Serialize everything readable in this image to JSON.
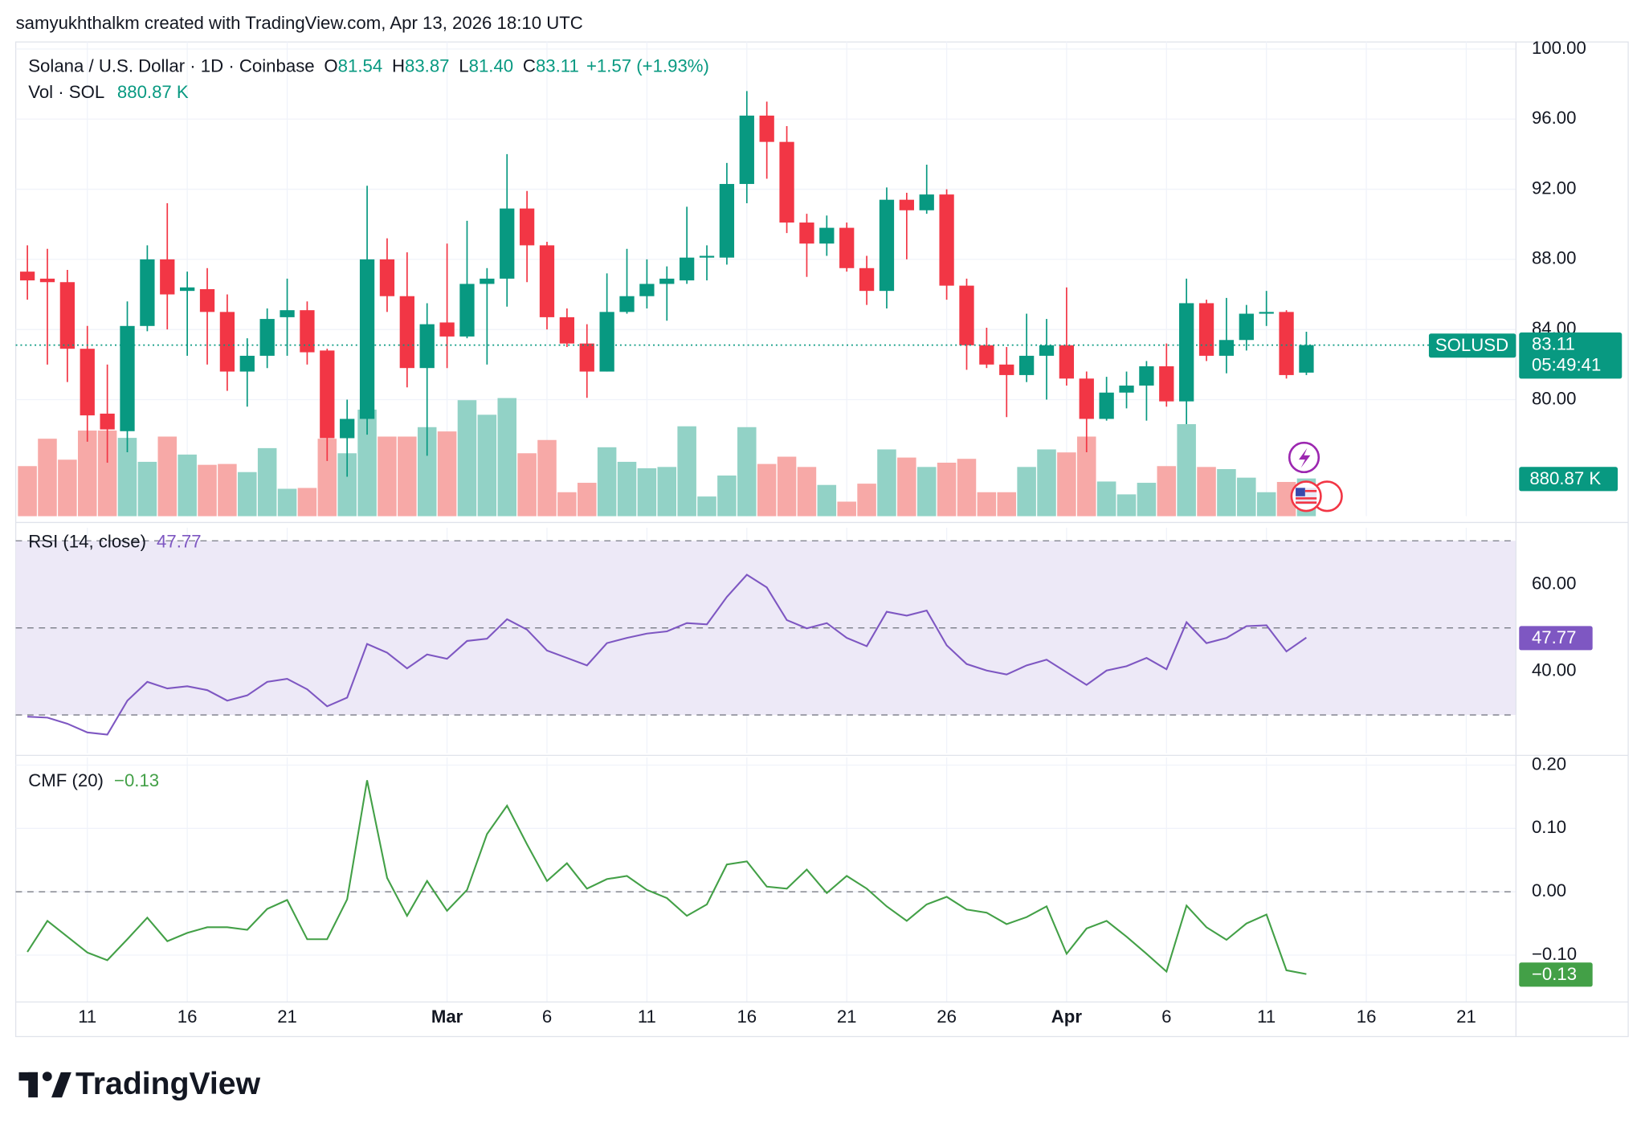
{
  "header": {
    "title": "samyukhthalkm created with TradingView.com, Apr 13, 2026 18:10 UTC"
  },
  "footer": {
    "logo": "TradingView"
  },
  "chart_data": [
    {
      "type": "candlestick",
      "title": "Solana / U.S. Dollar · 1D · Coinbase",
      "legend": {
        "o": "O",
        "o_value": "81.54",
        "h": "H",
        "h_value": "83.87",
        "l": "L",
        "l_value": "81.40",
        "c": "C",
        "c_value": "83.11",
        "change": "+1.57 (+1.93%)"
      },
      "volume_title": "Vol · SOL",
      "volume_legend": "880.87 K",
      "volume_tag": "880.87 K",
      "symbol_tag": "SOLUSD",
      "countdown": "05:49:41",
      "x": [
        "2026-02-08",
        "2026-02-09",
        "2026-02-10",
        "2026-02-11",
        "2026-02-12",
        "2026-02-13",
        "2026-02-14",
        "2026-02-15",
        "2026-02-16",
        "2026-02-17",
        "2026-02-18",
        "2026-02-19",
        "2026-02-20",
        "2026-02-21",
        "2026-02-22",
        "2026-02-23",
        "2026-02-24",
        "2026-02-25",
        "2026-02-26",
        "2026-02-27",
        "2026-02-28",
        "2026-03-01",
        "2026-03-02",
        "2026-03-03",
        "2026-03-04",
        "2026-03-05",
        "2026-03-06",
        "2026-03-07",
        "2026-03-08",
        "2026-03-09",
        "2026-03-10",
        "2026-03-11",
        "2026-03-12",
        "2026-03-13",
        "2026-03-14",
        "2026-03-15",
        "2026-03-16",
        "2026-03-17",
        "2026-03-18",
        "2026-03-19",
        "2026-03-20",
        "2026-03-21",
        "2026-03-22",
        "2026-03-23",
        "2026-03-24",
        "2026-03-25",
        "2026-03-26",
        "2026-03-27",
        "2026-03-28",
        "2026-03-29",
        "2026-03-30",
        "2026-03-31",
        "2026-04-01",
        "2026-04-02",
        "2026-04-03",
        "2026-04-04",
        "2026-04-05",
        "2026-04-06",
        "2026-04-07",
        "2026-04-08",
        "2026-04-09",
        "2026-04-10",
        "2026-04-11",
        "2026-04-12",
        "2026-04-13"
      ],
      "open": [
        87.3,
        86.9,
        86.7,
        82.9,
        79.2,
        78.2,
        84.2,
        88.0,
        86.2,
        86.3,
        85.0,
        81.6,
        82.5,
        84.7,
        85.1,
        82.8,
        77.8,
        78.9,
        88.0,
        85.9,
        81.8,
        84.4,
        83.6,
        86.6,
        86.9,
        90.9,
        88.8,
        84.7,
        83.2,
        81.6,
        85.0,
        85.9,
        86.6,
        86.8,
        88.1,
        88.1,
        92.3,
        96.2,
        94.7,
        90.1,
        88.9,
        89.8,
        87.5,
        86.2,
        91.4,
        90.8,
        91.7,
        86.5,
        83.1,
        82.0,
        81.4,
        82.5,
        83.1,
        81.2,
        78.9,
        80.4,
        80.8,
        81.9,
        79.9,
        85.5,
        82.5,
        83.4,
        84.9,
        85.0,
        81.54
      ],
      "high": [
        88.8,
        88.6,
        87.4,
        84.2,
        82.0,
        85.6,
        88.8,
        91.2,
        87.3,
        87.5,
        86.0,
        83.5,
        85.2,
        86.9,
        85.6,
        82.9,
        80.0,
        92.2,
        89.2,
        88.4,
        85.5,
        88.9,
        90.2,
        87.5,
        94.0,
        91.9,
        89.0,
        85.2,
        84.3,
        87.2,
        88.6,
        88.0,
        87.6,
        91.0,
        88.8,
        93.5,
        97.6,
        97.0,
        95.6,
        90.6,
        90.5,
        90.1,
        88.2,
        92.1,
        91.8,
        93.4,
        92.0,
        86.9,
        84.1,
        83.0,
        84.9,
        84.6,
        86.4,
        81.6,
        81.3,
        81.6,
        82.2,
        83.2,
        86.9,
        85.7,
        85.8,
        85.4,
        86.2,
        85.1,
        83.87
      ],
      "low": [
        85.7,
        82.0,
        81.0,
        77.6,
        76.4,
        77.0,
        83.9,
        84.0,
        82.5,
        82.0,
        80.5,
        79.6,
        81.8,
        82.5,
        82.0,
        76.5,
        75.6,
        78.0,
        85.0,
        80.7,
        76.8,
        81.8,
        83.5,
        82.0,
        85.3,
        86.7,
        84.0,
        83.0,
        80.1,
        81.6,
        84.9,
        85.2,
        84.5,
        86.6,
        86.8,
        87.7,
        91.2,
        92.6,
        89.5,
        87.0,
        88.2,
        87.3,
        85.4,
        85.2,
        88.0,
        90.6,
        85.7,
        81.7,
        81.8,
        79.0,
        81.0,
        80.0,
        80.8,
        77.0,
        78.8,
        79.5,
        78.8,
        79.6,
        78.6,
        82.2,
        81.5,
        82.8,
        84.2,
        81.2,
        81.4
      ],
      "close": [
        86.8,
        86.7,
        82.9,
        79.1,
        78.3,
        84.2,
        88.0,
        86.0,
        86.4,
        85.0,
        81.6,
        82.5,
        84.6,
        85.1,
        82.7,
        77.8,
        78.9,
        88.0,
        85.9,
        81.8,
        84.3,
        83.6,
        86.6,
        86.9,
        90.9,
        88.8,
        84.7,
        83.2,
        81.6,
        85.0,
        85.9,
        86.6,
        86.9,
        88.1,
        88.2,
        92.3,
        96.2,
        94.7,
        90.1,
        88.9,
        89.8,
        87.5,
        86.2,
        91.4,
        90.8,
        91.7,
        86.5,
        83.1,
        82.0,
        81.4,
        82.5,
        83.1,
        81.2,
        78.9,
        80.4,
        80.8,
        81.9,
        79.9,
        85.5,
        82.5,
        83.4,
        84.9,
        85.0,
        81.4,
        83.11
      ],
      "volume": [
        1170,
        1810,
        1320,
        2000,
        2000,
        1830,
        1270,
        1860,
        1440,
        1200,
        1220,
        1030,
        1590,
        640,
        660,
        1810,
        1470,
        2490,
        1860,
        1860,
        2080,
        1980,
        2710,
        2370,
        2760,
        1470,
        1780,
        560,
        780,
        1610,
        1270,
        1120,
        1150,
        2100,
        460,
        950,
        2080,
        1220,
        1390,
        1150,
        730,
        340,
        760,
        1560,
        1370,
        1150,
        1250,
        1340,
        560,
        560,
        1150,
        1560,
        1490,
        1860,
        810,
        510,
        780,
        1170,
        2150,
        1150,
        1100,
        900,
        560,
        800,
        880.87
      ],
      "up_color": "#089981",
      "down_color": "#f23645",
      "volume_up_color": "#92d2c6",
      "volume_down_color": "#f7a9a7",
      "xlim": [
        "2026-02-07T10:00:00Z",
        "2026-04-23T11:40:00Z"
      ],
      "xticks": [
        {
          "value": "2026-02-11",
          "label": "11"
        },
        {
          "value": "2026-02-16",
          "label": "16"
        },
        {
          "value": "2026-02-21",
          "label": "21"
        },
        {
          "value": "2026-03-01",
          "label": "Mar"
        },
        {
          "value": "2026-03-06",
          "label": "6"
        },
        {
          "value": "2026-03-11",
          "label": "11"
        },
        {
          "value": "2026-03-16",
          "label": "16"
        },
        {
          "value": "2026-03-21",
          "label": "21"
        },
        {
          "value": "2026-03-26",
          "label": "26"
        },
        {
          "value": "2026-04-01",
          "label": "Apr"
        },
        {
          "value": "2026-04-06",
          "label": "6"
        },
        {
          "value": "2026-04-11",
          "label": "11"
        },
        {
          "value": "2026-04-16",
          "label": "16"
        },
        {
          "value": "2026-04-21",
          "label": "21"
        }
      ],
      "ylim": [
        73.35,
        100.4
      ],
      "yticks": [
        {
          "value": 100,
          "label": "100.00"
        },
        {
          "value": 96,
          "label": "96.00"
        },
        {
          "value": 92,
          "label": "92.00"
        },
        {
          "value": 88,
          "label": "88.00"
        },
        {
          "value": 84,
          "label": "84.00"
        },
        {
          "value": 80,
          "label": "80.00"
        }
      ],
      "volume_ylim": [
        0,
        5000
      ],
      "grid": true
    },
    {
      "type": "line",
      "title": "RSI (14, close)",
      "x": [
        "2026-02-08",
        "2026-02-09",
        "2026-02-10",
        "2026-02-11",
        "2026-02-12",
        "2026-02-13",
        "2026-02-14",
        "2026-02-15",
        "2026-02-16",
        "2026-02-17",
        "2026-02-18",
        "2026-02-19",
        "2026-02-20",
        "2026-02-21",
        "2026-02-22",
        "2026-02-23",
        "2026-02-24",
        "2026-02-25",
        "2026-02-26",
        "2026-02-27",
        "2026-02-28",
        "2026-03-01",
        "2026-03-02",
        "2026-03-03",
        "2026-03-04",
        "2026-03-05",
        "2026-03-06",
        "2026-03-07",
        "2026-03-08",
        "2026-03-09",
        "2026-03-10",
        "2026-03-11",
        "2026-03-12",
        "2026-03-13",
        "2026-03-14",
        "2026-03-15",
        "2026-03-16",
        "2026-03-17",
        "2026-03-18",
        "2026-03-19",
        "2026-03-20",
        "2026-03-21",
        "2026-03-22",
        "2026-03-23",
        "2026-03-24",
        "2026-03-25",
        "2026-03-26",
        "2026-03-27",
        "2026-03-28",
        "2026-03-29",
        "2026-03-30",
        "2026-03-31",
        "2026-04-01",
        "2026-04-02",
        "2026-04-03",
        "2026-04-04",
        "2026-04-05",
        "2026-04-06",
        "2026-04-07",
        "2026-04-08",
        "2026-04-09",
        "2026-04-10",
        "2026-04-11",
        "2026-04-12",
        "2026-04-13"
      ],
      "values": [
        29.6,
        29.4,
        28,
        26,
        25.5,
        33.3,
        37.6,
        36.1,
        36.6,
        35.7,
        33.3,
        34.5,
        37.6,
        38.3,
        35.9,
        32.0,
        34.0,
        46.3,
        44.3,
        40.7,
        43.9,
        42.9,
        47.0,
        47.5,
        52.0,
        49.6,
        44.8,
        43.1,
        41.4,
        46.5,
        47.7,
        48.7,
        49.2,
        51.1,
        50.8,
        57.1,
        62.2,
        59.3,
        51.8,
        49.9,
        51.1,
        47.7,
        45.8,
        53.7,
        52.8,
        54.0,
        46.0,
        41.7,
        40.2,
        39.3,
        41.4,
        42.7,
        39.8,
        36.9,
        40.2,
        41.2,
        43.1,
        40.5,
        51.3,
        46.5,
        47.7,
        50.4,
        50.6,
        44.6,
        47.77
      ],
      "color": "#7e57c2",
      "band_color": "#ede9f7",
      "ylim": [
        21.2,
        73.0
      ],
      "yticks": [
        {
          "value": 60,
          "label": "60.00"
        },
        {
          "value": 40,
          "label": "40.00"
        }
      ],
      "bands": [
        70,
        50,
        30
      ],
      "grid": true
    },
    {
      "type": "line",
      "title": "CMF (20)",
      "value_label": "−0.13",
      "value_tag": "−0.13",
      "x": [
        "2026-02-08",
        "2026-02-09",
        "2026-02-10",
        "2026-02-11",
        "2026-02-12",
        "2026-02-13",
        "2026-02-14",
        "2026-02-15",
        "2026-02-16",
        "2026-02-17",
        "2026-02-18",
        "2026-02-19",
        "2026-02-20",
        "2026-02-21",
        "2026-02-22",
        "2026-02-23",
        "2026-02-24",
        "2026-02-25",
        "2026-02-26",
        "2026-02-27",
        "2026-02-28",
        "2026-03-01",
        "2026-03-02",
        "2026-03-03",
        "2026-03-04",
        "2026-03-05",
        "2026-03-06",
        "2026-03-07",
        "2026-03-08",
        "2026-03-09",
        "2026-03-10",
        "2026-03-11",
        "2026-03-12",
        "2026-03-13",
        "2026-03-14",
        "2026-03-15",
        "2026-03-16",
        "2026-03-17",
        "2026-03-18",
        "2026-03-19",
        "2026-03-20",
        "2026-03-21",
        "2026-03-22",
        "2026-03-23",
        "2026-03-24",
        "2026-03-25",
        "2026-03-26",
        "2026-03-27",
        "2026-03-28",
        "2026-03-29",
        "2026-03-30",
        "2026-03-31",
        "2026-04-01",
        "2026-04-02",
        "2026-04-03",
        "2026-04-04",
        "2026-04-05",
        "2026-04-06",
        "2026-04-07",
        "2026-04-08",
        "2026-04-09",
        "2026-04-10",
        "2026-04-11",
        "2026-04-12",
        "2026-04-13"
      ],
      "values": [
        -0.095,
        -0.046,
        -0.071,
        -0.096,
        -0.108,
        -0.075,
        -0.041,
        -0.078,
        -0.065,
        -0.056,
        -0.056,
        -0.06,
        -0.027,
        -0.013,
        -0.075,
        -0.075,
        -0.012,
        0.176,
        0.022,
        -0.038,
        0.017,
        -0.03,
        0.003,
        0.091,
        0.136,
        0.075,
        0.017,
        0.045,
        0.005,
        0.02,
        0.025,
        0.003,
        -0.01,
        -0.038,
        -0.02,
        0.043,
        0.048,
        0.008,
        0.005,
        0.035,
        -0.002,
        0.025,
        0.005,
        -0.023,
        -0.046,
        -0.02,
        -0.008,
        -0.028,
        -0.033,
        -0.051,
        -0.04,
        -0.023,
        -0.098,
        -0.058,
        -0.046,
        -0.071,
        -0.098,
        -0.126,
        -0.022,
        -0.056,
        -0.076,
        -0.05,
        -0.036,
        -0.124,
        -0.13
      ],
      "color": "#43a047",
      "ylim": [
        -0.174,
        0.212
      ],
      "yticks": [
        {
          "value": 0.2,
          "label": "0.20"
        },
        {
          "value": 0.1,
          "label": "0.10"
        },
        {
          "value": 0,
          "label": "0.00"
        },
        {
          "value": -0.1,
          "label": "−0.10"
        }
      ],
      "baseline": 0,
      "grid": true
    }
  ]
}
